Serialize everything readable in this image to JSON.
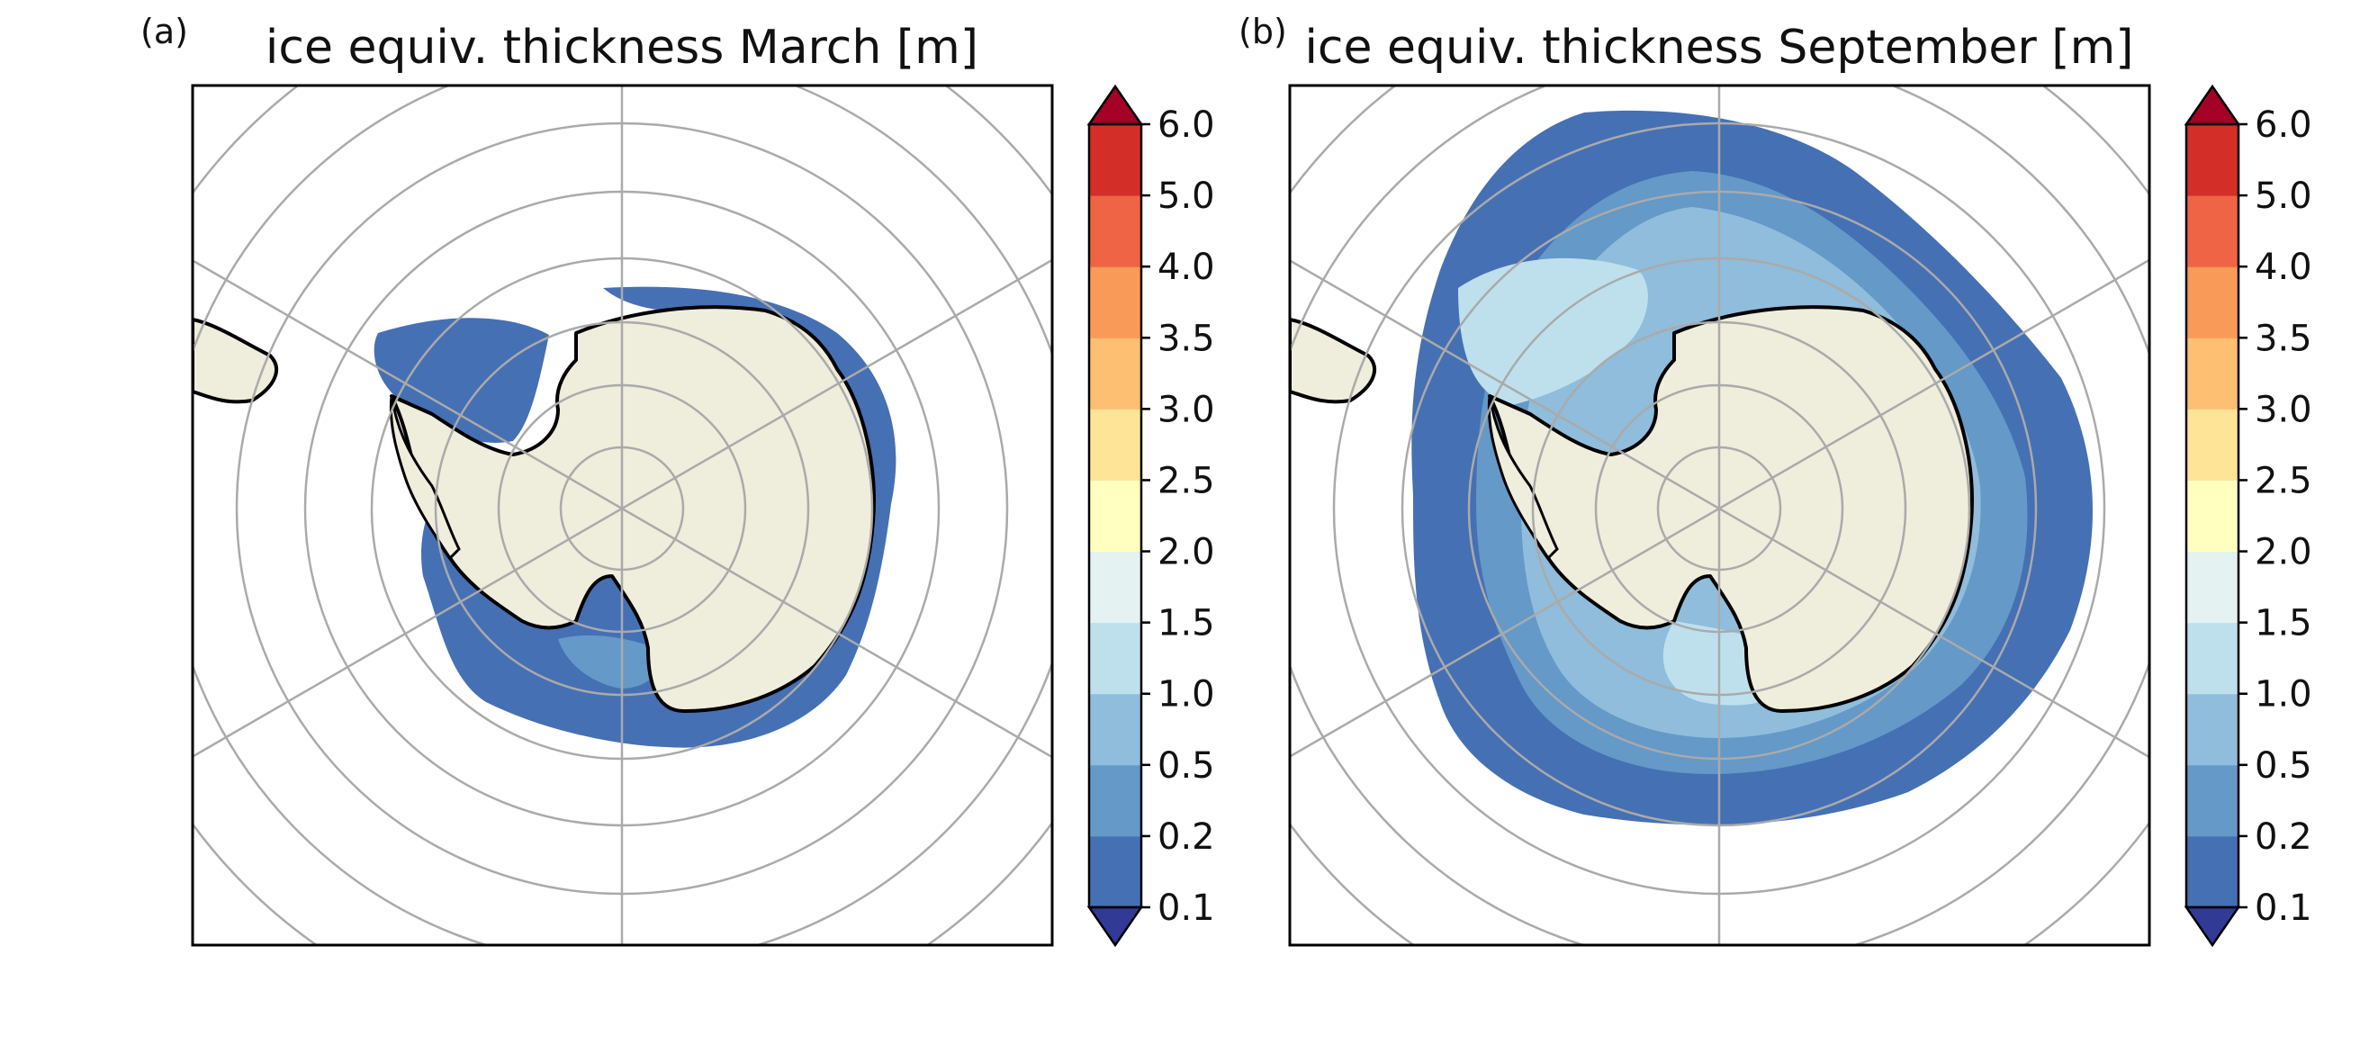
{
  "panels": [
    {
      "label": "(a)",
      "title": "ice equiv. thickness March [m]",
      "month": "March"
    },
    {
      "label": "(b)",
      "title": "ice equiv. thickness September [m]",
      "month": "September"
    }
  ],
  "colorbar": {
    "ticks": [
      "0.1",
      "0.2",
      "0.5",
      "1.0",
      "1.5",
      "2.0",
      "2.5",
      "3.0",
      "3.5",
      "4.0",
      "5.0",
      "6.0"
    ],
    "colors": [
      "#4570b4",
      "#6499c8",
      "#8fbddb",
      "#bee0ec",
      "#e4f3f1",
      "#ffffc0",
      "#fee496",
      "#fdbf71",
      "#fa9a59",
      "#ee6444",
      "#d42e28"
    ],
    "under_color": "#313b96",
    "over_color": "#a50026"
  },
  "map_colors": {
    "land": "#efeddc",
    "ocean": "#ffffff",
    "grid": "#aaaaaa",
    "coast": "#000000"
  }
}
